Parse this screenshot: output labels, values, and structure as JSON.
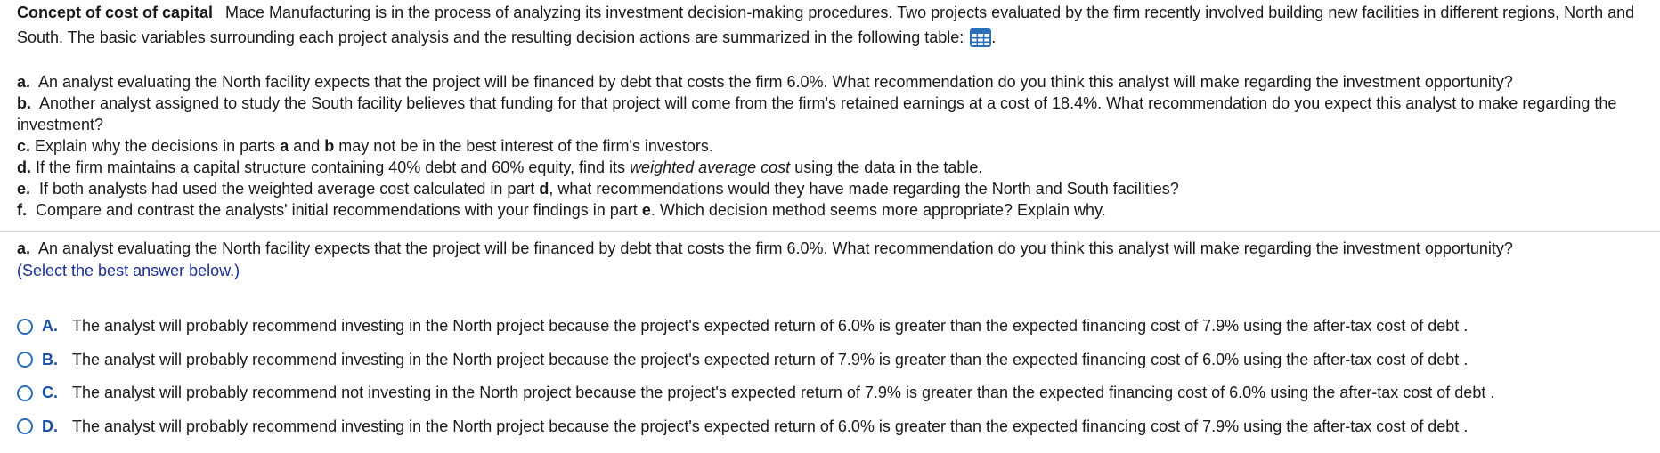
{
  "intro": {
    "title": "Concept of cost of capital",
    "text": "Mace Manufacturing is in the process of analyzing its investment decision-making procedures.  Two projects evaluated by the firm recently involved building new facilities in different regions, North and South.  The basic variables surrounding each project analysis and the resulting decision actions are summarized in the following table:",
    "trailing": ".",
    "table_icon": "table-grid-icon"
  },
  "parts": {
    "a_letter": "a.",
    "a_text": "An analyst evaluating the North facility expects that the project will be financed by debt that costs the firm 6.0%. What recommendation do you think this analyst will make regarding the investment opportunity?",
    "b_letter": "b.",
    "b_text": "Another analyst assigned to study the South facility believes that funding for that project will come from the firm's retained earnings at a cost of 18.4%. What recommendation do you expect this analyst to make regarding the investment?",
    "c_letter": "c.",
    "c_text1": "Explain why the decisions in parts",
    "c_a": "a",
    "c_and": "and",
    "c_b": "b",
    "c_text2": "may not be in the best interest of the firm's investors.",
    "d_letter": "d.",
    "d_text1": "If the firm maintains a capital structure containing 40% debt and 60% equity, find its",
    "d_italic": "weighted average cost",
    "d_text2": "using the data in the table.",
    "e_letter": "e.",
    "e_text1": "If both analysts had used the weighted average cost calculated in part",
    "e_d": "d",
    "e_text2": ", what recommendations would they have made regarding the North and South facilities?",
    "f_letter": "f.",
    "f_text1": "Compare and contrast the analysts' initial recommendations with your findings in part",
    "f_e": "e",
    "f_text2": ". Which decision method seems more appropriate? Explain why."
  },
  "question": {
    "letter": "a.",
    "text": "An analyst evaluating the North facility expects that the project will be financed by debt that costs the firm 6.0%. What recommendation do you think this analyst will make regarding the investment opportunity?",
    "hint": "(Select the best answer below.)"
  },
  "options": [
    {
      "letter": "A.",
      "text": "The analyst will probably recommend investing in the North project because the project's expected return of 6.0% is greater than the expected financing cost of 7.9% using the after-tax cost of debt ."
    },
    {
      "letter": "B.",
      "text": "The analyst will probably recommend investing in the North project because the project's expected return of 7.9% is greater than the expected financing cost of 6.0% using the after-tax cost of debt ."
    },
    {
      "letter": "C.",
      "text": "The analyst will probably recommend not investing in the North project because the project's expected return of 7.9% is greater than the expected financing cost of 6.0% using the after-tax cost of debt ."
    },
    {
      "letter": "D.",
      "text": "The analyst will probably recommend investing in the North project because the project's expected return of 6.0% is greater than the expected financing cost of 7.9% using the after-tax cost of debt ."
    }
  ],
  "colors": {
    "accent": "#1b4fa6",
    "radio": "#2a6fb8",
    "hint": "#1b2f8f",
    "divider": "#d6d6d6"
  }
}
